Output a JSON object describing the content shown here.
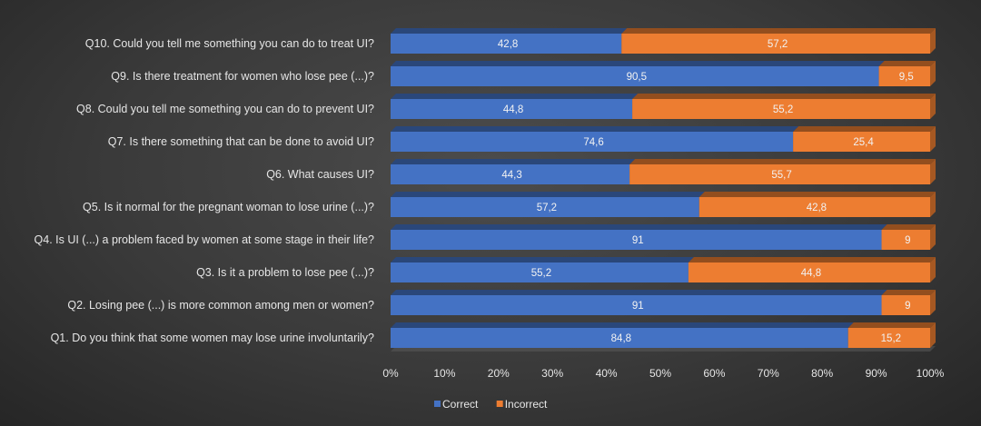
{
  "chart_data": {
    "type": "bar",
    "orientation": "horizontal",
    "stacked": "100%",
    "categories": [
      "Q1. Do you think that some women may lose urine involuntarily?",
      "Q2. Losing pee (...) is more common among men or women?",
      "Q3. Is it a problem to lose pee (...)?",
      "Q4. Is UI (...) a problem faced by women at some stage in their life?",
      "Q5. Is it normal for the pregnant woman to lose urine (...)?",
      "Q6. What causes UI?",
      "Q7. Is there something that can be done to avoid UI?",
      "Q8. Could you tell me something you can do to prevent UI?",
      "Q9. Is there treatment for women who lose pee (...)?",
      "Q10. Could you tell me something you can do to treat UI?"
    ],
    "series": [
      {
        "name": "Correct",
        "color": "#4472c4",
        "values": [
          84.8,
          91,
          55.2,
          91,
          57.2,
          44.3,
          74.6,
          44.8,
          90.5,
          42.8
        ],
        "labels": [
          "84,8",
          "91",
          "55,2",
          "91",
          "57,2",
          "44,3",
          "74,6",
          "44,8",
          "90,5",
          "42,8"
        ]
      },
      {
        "name": "Incorrect",
        "color": "#ed7d31",
        "values": [
          15.2,
          9,
          44.8,
          9,
          42.8,
          55.7,
          25.4,
          55.2,
          9.5,
          57.2
        ],
        "labels": [
          "15,2",
          "9",
          "44,8",
          "9",
          "42,8",
          "55,7",
          "25,4",
          "55,2",
          "9,5",
          "57,2"
        ]
      }
    ],
    "xlim": [
      0,
      100
    ],
    "x_ticks": [
      0,
      10,
      20,
      30,
      40,
      50,
      60,
      70,
      80,
      90,
      100
    ],
    "x_tick_labels": [
      "0%",
      "10%",
      "20%",
      "30%",
      "40%",
      "50%",
      "60%",
      "70%",
      "80%",
      "90%",
      "100%"
    ],
    "grid": false,
    "legend_position": "bottom",
    "style": "3d"
  }
}
